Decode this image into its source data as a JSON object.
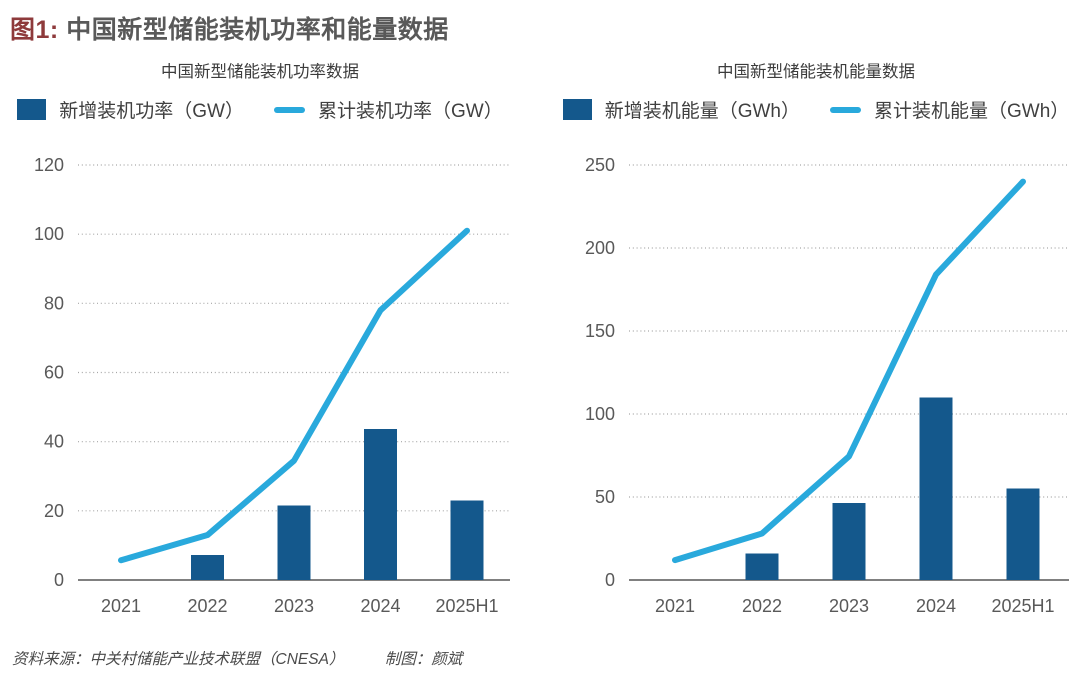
{
  "header": {
    "label": "图1: ",
    "title": "中国新型储能装机功率和能量数据"
  },
  "footer": {
    "source": "资料来源：中关村储能产业技术联盟（CNESA）",
    "credit": "制图：颜斌"
  },
  "colors": {
    "title_label": "#8e3a3b",
    "title_text": "#595959",
    "bar": "#14588c",
    "line": "#29a9dc",
    "grid": "#a6a6a6",
    "axis": "#808080",
    "tick_text": "#595959",
    "legend_text": "#404040",
    "footer_text": "#4b4b4b"
  },
  "chart_data": [
    {
      "type": "bar+line",
      "title": "中国新型储能装机功率数据",
      "categories": [
        "2021",
        "2022",
        "2023",
        "2024",
        "2025H1"
      ],
      "series": [
        {
          "name": "新增装机功率（GW）",
          "type": "bar",
          "values": [
            0,
            7.3,
            21.5,
            43.7,
            23
          ]
        },
        {
          "name": "累计装机功率（GW）",
          "type": "line",
          "values": [
            5.7,
            13,
            34.5,
            78,
            101
          ]
        }
      ],
      "xlabel": "",
      "ylabel": "",
      "ylim": [
        0,
        120
      ],
      "ytick_step": 20,
      "grid": "dotted-horizontal",
      "legend_position": "top"
    },
    {
      "type": "bar+line",
      "title": "中国新型储能装机能量数据",
      "categories": [
        "2021",
        "2022",
        "2023",
        "2024",
        "2025H1"
      ],
      "series": [
        {
          "name": "新增装机能量（GWh）",
          "type": "bar",
          "values": [
            0,
            16,
            46.5,
            110,
            55
          ]
        },
        {
          "name": "累计装机能量（GWh）",
          "type": "line",
          "values": [
            12,
            28,
            74.5,
            184,
            240
          ]
        }
      ],
      "xlabel": "",
      "ylabel": "",
      "ylim": [
        0,
        250
      ],
      "ytick_step": 50,
      "grid": "dotted-horizontal",
      "legend_position": "top"
    }
  ]
}
